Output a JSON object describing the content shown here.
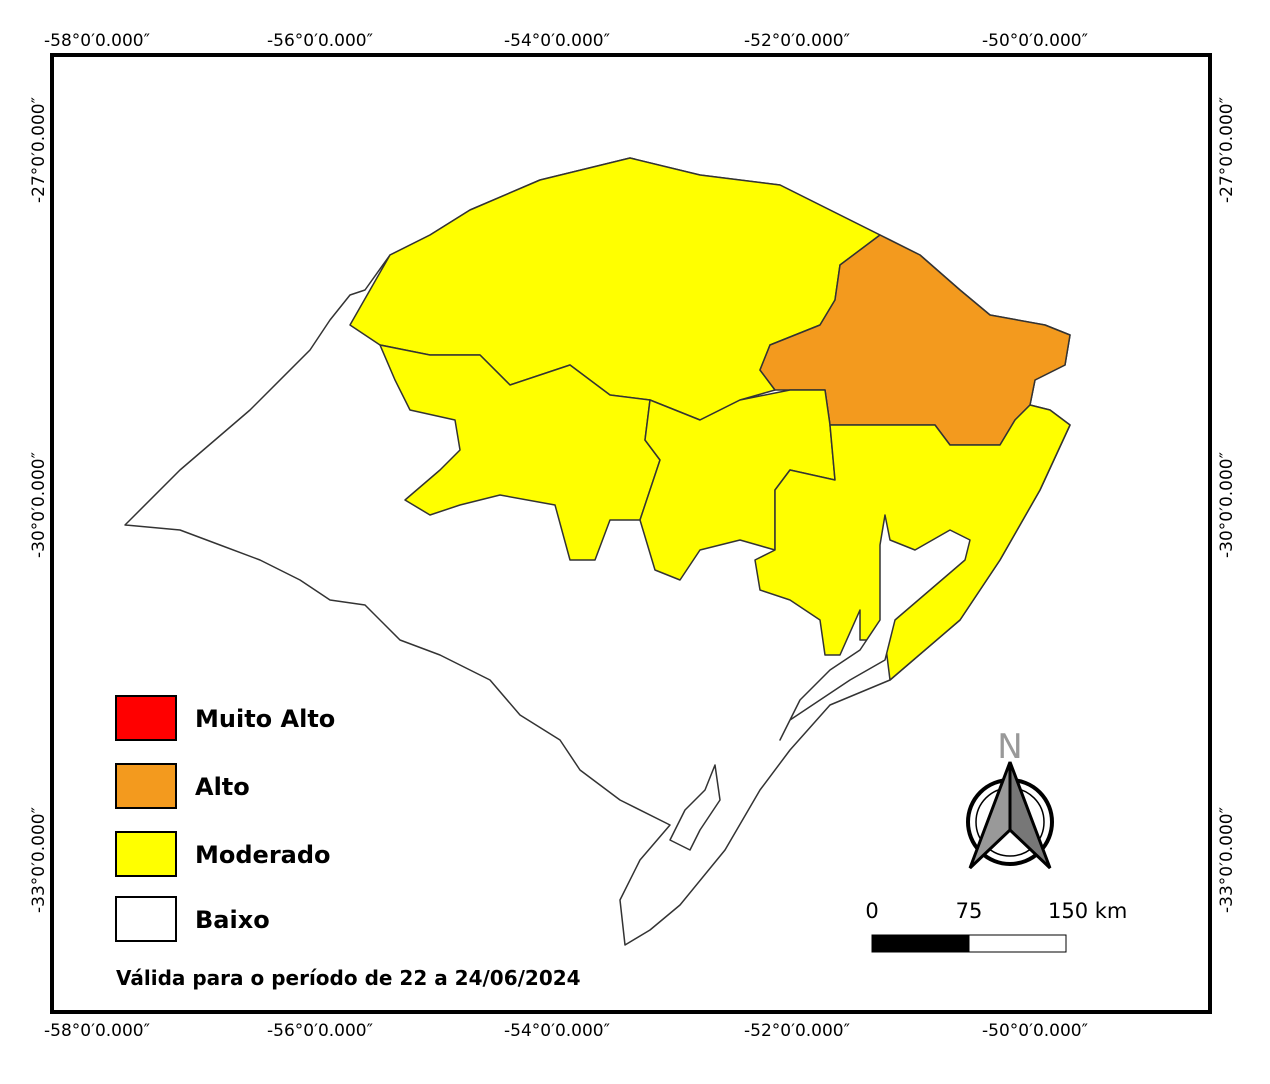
{
  "graticule": {
    "longitudes": [
      "-58°0′0.000″",
      "-56°0′0.000″",
      "-54°0′0.000″",
      "-52°0′0.000″",
      "-50°0′0.000″"
    ],
    "latitudes": [
      "-27°0′0.000″",
      "-30°0′0.000″",
      "-33°0′0.000″"
    ]
  },
  "legend": {
    "items": [
      {
        "label": "Muito Alto",
        "color": "#ff0000"
      },
      {
        "label": "Alto",
        "color": "#f39a1e"
      },
      {
        "label": "Moderado",
        "color": "#ffff00"
      },
      {
        "label": "Baixo",
        "color": "#ffffff"
      }
    ]
  },
  "validity": "Válida para o período de 22 a 24/06/2024",
  "north_arrow": {
    "label": "N"
  },
  "scale_bar": {
    "labels": [
      "0",
      "75",
      "150 km"
    ]
  }
}
